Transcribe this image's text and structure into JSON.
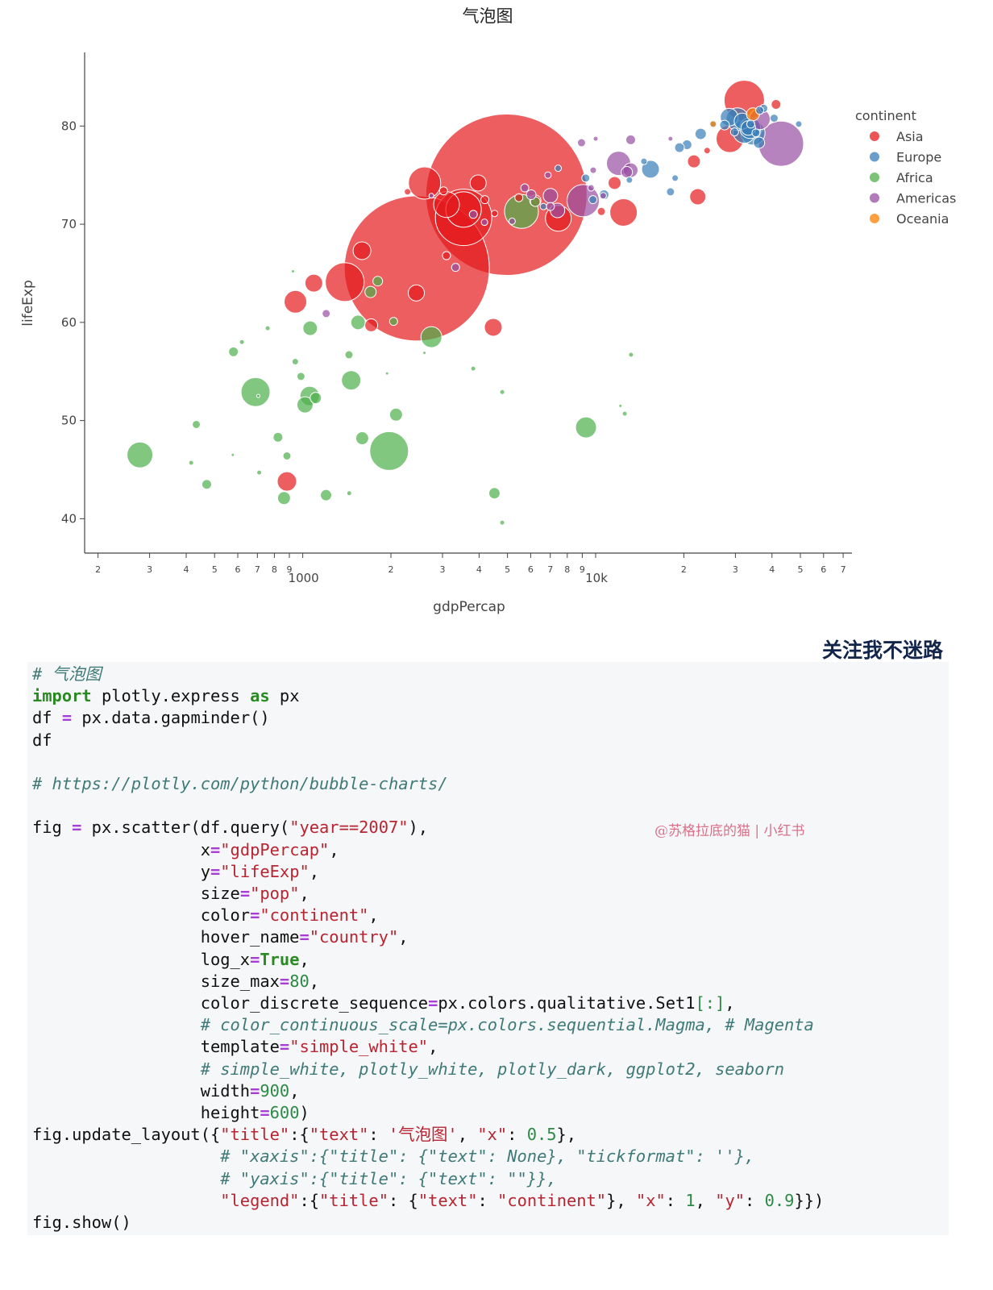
{
  "chart_data": {
    "type": "scatter",
    "title": "气泡图",
    "xlabel": "gdpPercap",
    "ylabel": "lifeExp",
    "x_scale": "log",
    "xlim": [
      180,
      75000
    ],
    "ylim": [
      36.5,
      87.5
    ],
    "y_ticks": [
      40,
      50,
      60,
      70,
      80
    ],
    "x_tick_labels": [
      {
        "v": 200,
        "t": "2"
      },
      {
        "v": 300,
        "t": "3"
      },
      {
        "v": 400,
        "t": "4"
      },
      {
        "v": 500,
        "t": "5"
      },
      {
        "v": 600,
        "t": "6"
      },
      {
        "v": 700,
        "t": "7"
      },
      {
        "v": 800,
        "t": "8"
      },
      {
        "v": 900,
        "t": "9"
      },
      {
        "v": 1000,
        "t": "1000"
      },
      {
        "v": 2000,
        "t": "2"
      },
      {
        "v": 3000,
        "t": "3"
      },
      {
        "v": 4000,
        "t": "4"
      },
      {
        "v": 5000,
        "t": "5"
      },
      {
        "v": 6000,
        "t": "6"
      },
      {
        "v": 7000,
        "t": "7"
      },
      {
        "v": 8000,
        "t": "8"
      },
      {
        "v": 9000,
        "t": "9"
      },
      {
        "v": 10000,
        "t": "10k"
      },
      {
        "v": 20000,
        "t": "2"
      },
      {
        "v": 30000,
        "t": "3"
      },
      {
        "v": 40000,
        "t": "4"
      },
      {
        "v": 50000,
        "t": "5"
      },
      {
        "v": 60000,
        "t": "6"
      },
      {
        "v": 70000,
        "t": "7"
      }
    ],
    "legend": {
      "title": "continent",
      "placement": "right"
    },
    "size_note": "bubble radius in relative units (population)",
    "series": [
      {
        "name": "Asia",
        "color": "#e41a1c",
        "points": [
          [
            2452,
            65.5,
            90
          ],
          [
            4959,
            73,
            100
          ],
          [
            3541,
            70.7,
            35
          ],
          [
            3540,
            71.5,
            22
          ],
          [
            2606,
            74.2,
            20
          ],
          [
            1391,
            64.1,
            24
          ],
          [
            32170,
            82.6,
            25
          ],
          [
            1091,
            64,
            11
          ],
          [
            12451,
            71.2,
            17
          ],
          [
            4471,
            59.5,
            11
          ],
          [
            22316,
            72.8,
            10
          ],
          [
            28718,
            78.7,
            17
          ],
          [
            7458,
            70.6,
            16
          ],
          [
            944,
            62.1,
            14
          ],
          [
            1593,
            67.3,
            11
          ],
          [
            3096,
            72,
            16
          ],
          [
            3970,
            74.2,
            10
          ],
          [
            2442,
            63,
            10
          ],
          [
            21655,
            76.4,
            8
          ],
          [
            11606,
            74.2,
            8
          ],
          [
            6223,
            72.4,
            7
          ],
          [
            1713,
            59.7,
            8
          ],
          [
            4186,
            72.5,
            5
          ],
          [
            41291,
            82.2,
            6
          ],
          [
            883,
            43.8,
            12
          ],
          [
            3025,
            73.4,
            5
          ],
          [
            3095,
            66.8,
            5
          ],
          [
            10461,
            71.3,
            5
          ],
          [
            24024,
            77.5,
            4
          ],
          [
            5469,
            72.7,
            5
          ],
          [
            2279,
            73.3,
            4
          ],
          [
            4519,
            71.1,
            4
          ]
        ]
      },
      {
        "name": "Europe",
        "color": "#377eb8",
        "points": [
          [
            32170,
            79.4,
            14
          ],
          [
            34435,
            79.3,
            15
          ],
          [
            30470,
            80.7,
            14
          ],
          [
            33692,
            79.8,
            13
          ],
          [
            28570,
            80.9,
            11
          ],
          [
            15390,
            75.6,
            11
          ],
          [
            31656,
            80.5,
            10
          ],
          [
            33203,
            79.8,
            9
          ],
          [
            22833,
            79.2,
            7
          ],
          [
            20510,
            78.1,
            6
          ],
          [
            18008,
            73.3,
            5
          ],
          [
            19329,
            77.8,
            6
          ],
          [
            36126,
            78.3,
            7
          ],
          [
            10681,
            73,
            6
          ],
          [
            9787,
            72.5,
            5
          ],
          [
            27538,
            80.1,
            6
          ],
          [
            25185,
            80.2,
            5
          ],
          [
            33860,
            80.2,
            5
          ],
          [
            37506,
            81.8,
            5
          ],
          [
            40676,
            80.8,
            5
          ],
          [
            35278,
            79.3,
            5
          ],
          [
            9253,
            74.7,
            5
          ],
          [
            13039,
            74.5,
            4
          ],
          [
            29796,
            79.4,
            5
          ],
          [
            14619,
            76.4,
            4
          ],
          [
            18678,
            74.7,
            4
          ],
          [
            7446,
            75.7,
            4
          ],
          [
            6631,
            71.8,
            4
          ],
          [
            49357,
            80.2,
            4
          ],
          [
            36319,
            81.6,
            5
          ]
        ]
      },
      {
        "name": "Africa",
        "color": "#4daf4a",
        "points": [
          [
            1972,
            46.9,
            24
          ],
          [
            690,
            52.9,
            18
          ],
          [
            5581,
            71.3,
            21
          ],
          [
            2749,
            58.5,
            13
          ],
          [
            278,
            46.5,
            16
          ],
          [
            9270,
            49.3,
            13
          ],
          [
            1056,
            52.5,
            12
          ],
          [
            1463,
            54.1,
            12
          ],
          [
            1545,
            60,
            9
          ],
          [
            1060,
            59.4,
            9
          ],
          [
            1018,
            51.6,
            10
          ],
          [
            1596,
            48.2,
            8
          ],
          [
            2082,
            50.6,
            8
          ],
          [
            4513,
            42.6,
            7
          ],
          [
            1201,
            42.4,
            7
          ],
          [
            1108,
            52.3,
            7
          ],
          [
            580,
            57,
            6
          ],
          [
            1438,
            56.7,
            5
          ],
          [
            823,
            48.3,
            6
          ],
          [
            863,
            42.1,
            8
          ],
          [
            6223,
            72.3,
            6
          ],
          [
            1803,
            64.2,
            6
          ],
          [
            1704,
            63.1,
            7
          ],
          [
            433,
            49.6,
            5
          ],
          [
            470,
            43.5,
            6
          ],
          [
            986,
            54.5,
            5
          ],
          [
            883,
            46.4,
            5
          ],
          [
            943,
            56,
            4
          ],
          [
            2042,
            60.1,
            5
          ],
          [
            3820,
            55.3,
            3
          ],
          [
            12570,
            50.7,
            3
          ],
          [
            710,
            44.7,
            3
          ],
          [
            416,
            45.7,
            3
          ],
          [
            620,
            58,
            3
          ],
          [
            759,
            59.4,
            3
          ],
          [
            13206,
            56.7,
            3
          ],
          [
            4797,
            52.9,
            3
          ],
          [
            1441,
            42.6,
            3
          ],
          [
            4797,
            39.6,
            3
          ],
          [
            12154,
            51.5,
            2
          ],
          [
            926,
            65.2,
            2
          ],
          [
            577,
            46.5,
            2
          ],
          [
            1940,
            54.8,
            2
          ],
          [
            2602,
            56.9,
            2
          ],
          [
            705,
            52.5,
            2
          ]
        ]
      },
      {
        "name": "Americas",
        "color": "#984ea3",
        "points": [
          [
            42952,
            78.2,
            28
          ],
          [
            9066,
            72.4,
            20
          ],
          [
            11977,
            76.2,
            15
          ],
          [
            13172,
            75.5,
            9
          ],
          [
            7007,
            72.9,
            9
          ],
          [
            36319,
            80.7,
            13
          ],
          [
            7409,
            71.4,
            9
          ],
          [
            12779,
            75.3,
            7
          ],
          [
            6025,
            73,
            6
          ],
          [
            5728,
            73.7,
            5
          ],
          [
            7006,
            71.8,
            5
          ],
          [
            3822,
            71,
            5
          ],
          [
            9645,
            73.7,
            4
          ],
          [
            3325,
            65.6,
            5
          ],
          [
            1202,
            60.9,
            5
          ],
          [
            8948,
            78.3,
            5
          ],
          [
            5186,
            70.3,
            4
          ],
          [
            10611,
            72.9,
            4
          ],
          [
            9809,
            75.5,
            4
          ],
          [
            6873,
            75,
            4
          ],
          [
            4173,
            70.2,
            4
          ],
          [
            13172,
            78.6,
            6
          ],
          [
            10001,
            78.7,
            3
          ],
          [
            2749,
            72.9,
            3
          ],
          [
            18009,
            78.7,
            3
          ]
        ]
      },
      {
        "name": "Oceania",
        "color": "#ff7f00",
        "points": [
          [
            34435,
            81.2,
            8
          ],
          [
            25185,
            80.2,
            4
          ]
        ]
      }
    ]
  },
  "code": {
    "lines": [
      [
        [
          "cm",
          "# 气泡图"
        ]
      ],
      [
        [
          "kw",
          "import"
        ],
        [
          "t",
          " plotly.express "
        ],
        [
          "kw",
          "as"
        ],
        [
          "t",
          " px"
        ]
      ],
      [
        [
          "t",
          "df "
        ],
        [
          "op",
          "="
        ],
        [
          "t",
          " px.data.gapminder()"
        ]
      ],
      [
        [
          "t",
          "df"
        ]
      ],
      [
        [
          "t",
          ""
        ]
      ],
      [
        [
          "cm",
          "# https://plotly.com/python/bubble-charts/"
        ]
      ],
      [
        [
          "t",
          ""
        ]
      ],
      [
        [
          "t",
          "fig "
        ],
        [
          "op",
          "="
        ],
        [
          "t",
          " px.scatter(df.query("
        ],
        [
          "st",
          "\"year==2007\""
        ],
        [
          "t",
          "),"
        ]
      ],
      [
        [
          "t",
          "                 x"
        ],
        [
          "op",
          "="
        ],
        [
          "st",
          "\"gdpPercap\""
        ],
        [
          "t",
          ","
        ]
      ],
      [
        [
          "t",
          "                 y"
        ],
        [
          "op",
          "="
        ],
        [
          "st",
          "\"lifeExp\""
        ],
        [
          "t",
          ","
        ]
      ],
      [
        [
          "t",
          "                 size"
        ],
        [
          "op",
          "="
        ],
        [
          "st",
          "\"pop\""
        ],
        [
          "t",
          ","
        ]
      ],
      [
        [
          "t",
          "                 color"
        ],
        [
          "op",
          "="
        ],
        [
          "st",
          "\"continent\""
        ],
        [
          "t",
          ","
        ]
      ],
      [
        [
          "t",
          "                 hover_name"
        ],
        [
          "op",
          "="
        ],
        [
          "st",
          "\"country\""
        ],
        [
          "t",
          ","
        ]
      ],
      [
        [
          "t",
          "                 log_x"
        ],
        [
          "op",
          "="
        ],
        [
          "kw",
          "True"
        ],
        [
          "t",
          ","
        ]
      ],
      [
        [
          "t",
          "                 size_max"
        ],
        [
          "op",
          "="
        ],
        [
          "nm",
          "80"
        ],
        [
          "t",
          ","
        ]
      ],
      [
        [
          "t",
          "                 color_discrete_sequence"
        ],
        [
          "op",
          "="
        ],
        [
          "t",
          "px.colors.qualitative.Set1"
        ],
        [
          "nm",
          "[:]"
        ],
        [
          "t",
          ","
        ]
      ],
      [
        [
          "t",
          "                 "
        ],
        [
          "cm",
          "# color_continuous_scale=px.colors.sequential.Magma, # Magenta"
        ]
      ],
      [
        [
          "t",
          "                 template"
        ],
        [
          "op",
          "="
        ],
        [
          "st",
          "\"simple_white\""
        ],
        [
          "t",
          ","
        ]
      ],
      [
        [
          "t",
          "                 "
        ],
        [
          "cm",
          "# simple_white, plotly_white, plotly_dark, ggplot2, seaborn"
        ]
      ],
      [
        [
          "t",
          "                 width"
        ],
        [
          "op",
          "="
        ],
        [
          "nm",
          "900"
        ],
        [
          "t",
          ","
        ]
      ],
      [
        [
          "t",
          "                 height"
        ],
        [
          "op",
          "="
        ],
        [
          "nm",
          "600"
        ],
        [
          "t",
          ")"
        ]
      ],
      [
        [
          "t",
          "fig.update_layout({"
        ],
        [
          "st",
          "\"title\""
        ],
        [
          "t",
          ":{"
        ],
        [
          "st",
          "\"text\""
        ],
        [
          "t",
          ": "
        ],
        [
          "st",
          "'气泡图'"
        ],
        [
          "t",
          ", "
        ],
        [
          "st",
          "\"x\""
        ],
        [
          "t",
          ": "
        ],
        [
          "nm",
          "0.5"
        ],
        [
          "t",
          "},"
        ]
      ],
      [
        [
          "t",
          "                   "
        ],
        [
          "cm",
          "# \"xaxis\":{\"title\": {\"text\": None}, \"tickformat\": ''},"
        ]
      ],
      [
        [
          "t",
          "                   "
        ],
        [
          "cm",
          "# \"yaxis\":{\"title\": {\"text\": \"\"}},"
        ]
      ],
      [
        [
          "t",
          "                   "
        ],
        [
          "st",
          "\"legend\""
        ],
        [
          "t",
          ":{"
        ],
        [
          "st",
          "\"title\""
        ],
        [
          "t",
          ": {"
        ],
        [
          "st",
          "\"text\""
        ],
        [
          "t",
          ": "
        ],
        [
          "st",
          "\"continent\""
        ],
        [
          "t",
          "}, "
        ],
        [
          "st",
          "\"x\""
        ],
        [
          "t",
          ": "
        ],
        [
          "nm",
          "1"
        ],
        [
          "t",
          ", "
        ],
        [
          "st",
          "\"y\""
        ],
        [
          "t",
          ": "
        ],
        [
          "nm",
          "0.9"
        ],
        [
          "t",
          "}})"
        ]
      ],
      [
        [
          "t",
          "fig.show()"
        ]
      ]
    ]
  },
  "follow_text": "关注我不迷路",
  "watermark": "@苏格拉底的猫 | 小红书"
}
